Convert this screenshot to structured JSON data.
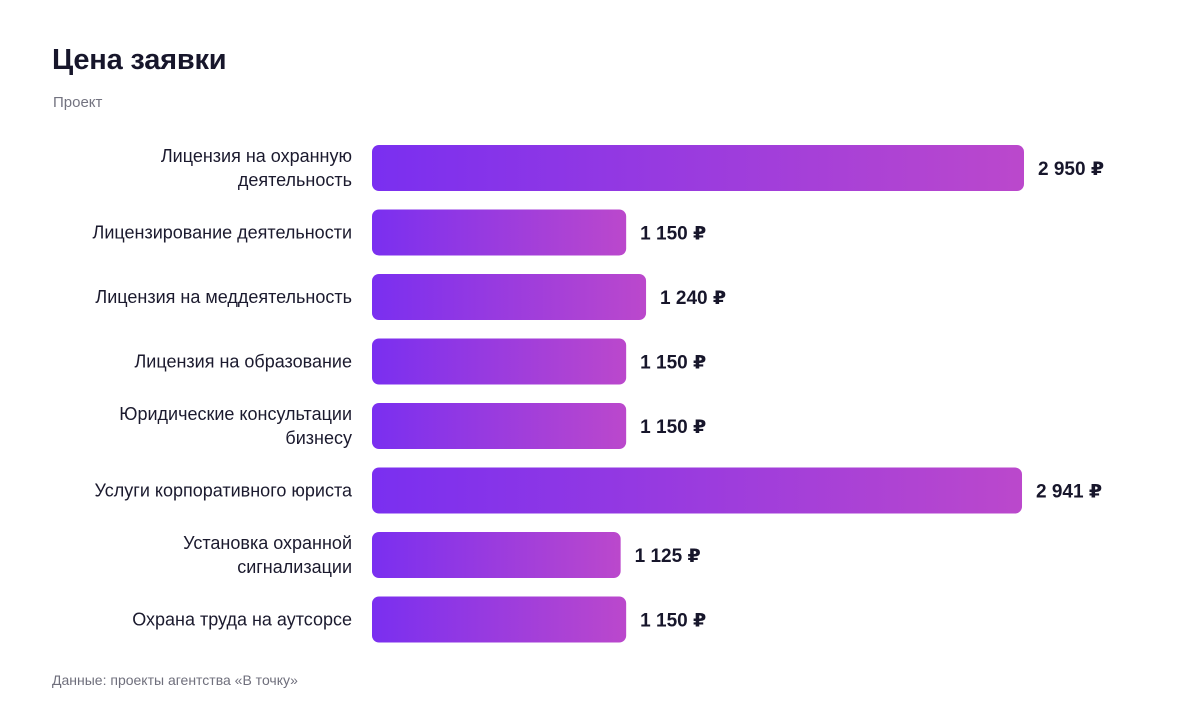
{
  "header": {
    "title": "Цена заявки",
    "subtitle": "Проект"
  },
  "footer": {
    "source": "Данные: проекты агентства «В точку»"
  },
  "colors": {
    "bar_start": "#7a2ff0",
    "bar_end": "#bb48cc"
  },
  "chart_data": {
    "type": "bar",
    "orientation": "horizontal",
    "currency": "₽",
    "categories": [
      [
        "Лицензия на охранную",
        "деятельность"
      ],
      [
        "Лицензирование деятельности"
      ],
      [
        "Лицензия на меддеятельность"
      ],
      [
        "Лицензия на образование"
      ],
      [
        "Юридические консультации",
        "бизнесу"
      ],
      [
        "Услуги корпоративного юриста"
      ],
      [
        "Установка охранной",
        "сигнализации"
      ],
      [
        "Охрана труда на аутсорсе"
      ]
    ],
    "values": [
      2950,
      1150,
      1240,
      1150,
      1150,
      2941,
      1125,
      1150
    ],
    "value_labels": [
      "2 950",
      "1 150",
      "1 240",
      "1 150",
      "1 150",
      "2 941",
      "1 125",
      "1 150"
    ],
    "xlim": [
      0,
      2950
    ],
    "grid": false,
    "legend": "none"
  }
}
